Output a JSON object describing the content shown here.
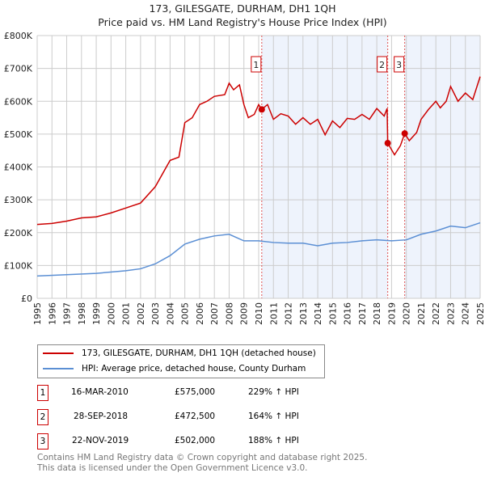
{
  "chart_data": {
    "type": "line",
    "title": "173, GILESGATE, DURHAM, DH1 1QH",
    "subtitle": "Price paid vs. HM Land Registry's House Price Index (HPI)",
    "xlim": [
      1995,
      2025
    ],
    "ylim": [
      0,
      800000
    ],
    "x_ticks": [
      "1995",
      "1996",
      "1997",
      "1998",
      "1999",
      "2000",
      "2001",
      "2002",
      "2003",
      "2004",
      "2005",
      "2006",
      "2007",
      "2008",
      "2009",
      "2010",
      "2011",
      "2012",
      "2013",
      "2014",
      "2015",
      "2016",
      "2017",
      "2018",
      "2019",
      "2020",
      "2021",
      "2022",
      "2023",
      "2024",
      "2025"
    ],
    "y_ticks": [
      {
        "v": 0,
        "label": "£0"
      },
      {
        "v": 100000,
        "label": "£100K"
      },
      {
        "v": 200000,
        "label": "£200K"
      },
      {
        "v": 300000,
        "label": "£300K"
      },
      {
        "v": 400000,
        "label": "£400K"
      },
      {
        "v": 500000,
        "label": "£500K"
      },
      {
        "v": 600000,
        "label": "£600K"
      },
      {
        "v": 700000,
        "label": "£700K"
      },
      {
        "v": 800000,
        "label": "£800K"
      }
    ],
    "grid": true,
    "series": [
      {
        "name": "173, GILESGATE, DURHAM, DH1 1QH (detached house)",
        "color": "#cc0000",
        "x": [
          1995,
          1996,
          1997,
          1998,
          1999,
          2000,
          2001,
          2002,
          2003,
          2004,
          2004.6,
          2005,
          2005.5,
          2006,
          2006.5,
          2007,
          2007.7,
          2008,
          2008.3,
          2008.7,
          2009,
          2009.3,
          2009.7,
          2010,
          2010.2,
          2010.6,
          2011,
          2011.5,
          2012,
          2012.5,
          2013,
          2013.5,
          2014,
          2014.5,
          2015,
          2015.5,
          2016,
          2016.5,
          2017,
          2017.5,
          2018,
          2018.5,
          2018.7,
          2018.74,
          2019.2,
          2019.6,
          2019.89,
          2020.2,
          2020.7,
          2021,
          2021.5,
          2022,
          2022.3,
          2022.7,
          2023,
          2023.5,
          2024,
          2024.5,
          2025
        ],
        "y": [
          225000,
          228000,
          235000,
          245000,
          248000,
          260000,
          275000,
          290000,
          340000,
          420000,
          430000,
          535000,
          550000,
          590000,
          600000,
          615000,
          620000,
          655000,
          635000,
          650000,
          590000,
          550000,
          560000,
          590000,
          575000,
          590000,
          545000,
          562000,
          555000,
          530000,
          550000,
          530000,
          545000,
          498000,
          540000,
          520000,
          548000,
          545000,
          560000,
          545000,
          578000,
          555000,
          578000,
          472500,
          437000,
          465000,
          502000,
          480000,
          505000,
          545000,
          575000,
          600000,
          580000,
          600000,
          645000,
          600000,
          625000,
          605000,
          675000
        ]
      },
      {
        "name": "HPI: Average price, detached house, County Durham",
        "color": "#5b8fd4",
        "x": [
          1995,
          1997,
          1999,
          2001,
          2002,
          2003,
          2004,
          2005,
          2006,
          2007,
          2008,
          2009,
          2010,
          2011,
          2012,
          2013,
          2014,
          2015,
          2016,
          2017,
          2018,
          2019,
          2020,
          2021,
          2022,
          2023,
          2024,
          2025
        ],
        "y": [
          68000,
          72000,
          76000,
          84000,
          90000,
          105000,
          130000,
          165000,
          180000,
          190000,
          195000,
          175000,
          175000,
          170000,
          168000,
          168000,
          160000,
          168000,
          170000,
          175000,
          178000,
          175000,
          178000,
          195000,
          205000,
          220000,
          215000,
          230000
        ]
      }
    ],
    "sales": [
      {
        "label": "1",
        "x": 2010.21,
        "y": 575000
      },
      {
        "label": "2",
        "x": 2018.74,
        "y": 472500
      },
      {
        "label": "3",
        "x": 2019.89,
        "y": 502000
      }
    ],
    "shaded": [
      [
        2010.21,
        2018.74
      ],
      [
        2019.89,
        2025
      ]
    ]
  },
  "table": [
    {
      "num": "1",
      "date": "16-MAR-2010",
      "price": "£575,000",
      "hpi": "229% ↑ HPI"
    },
    {
      "num": "2",
      "date": "28-SEP-2018",
      "price": "£472,500",
      "hpi": "164% ↑ HPI"
    },
    {
      "num": "3",
      "date": "22-NOV-2019",
      "price": "£502,000",
      "hpi": "188% ↑ HPI"
    }
  ],
  "footer": {
    "line1": "Contains HM Land Registry data © Crown copyright and database right 2025.",
    "line2": "This data is licensed under the Open Government Licence v3.0."
  }
}
